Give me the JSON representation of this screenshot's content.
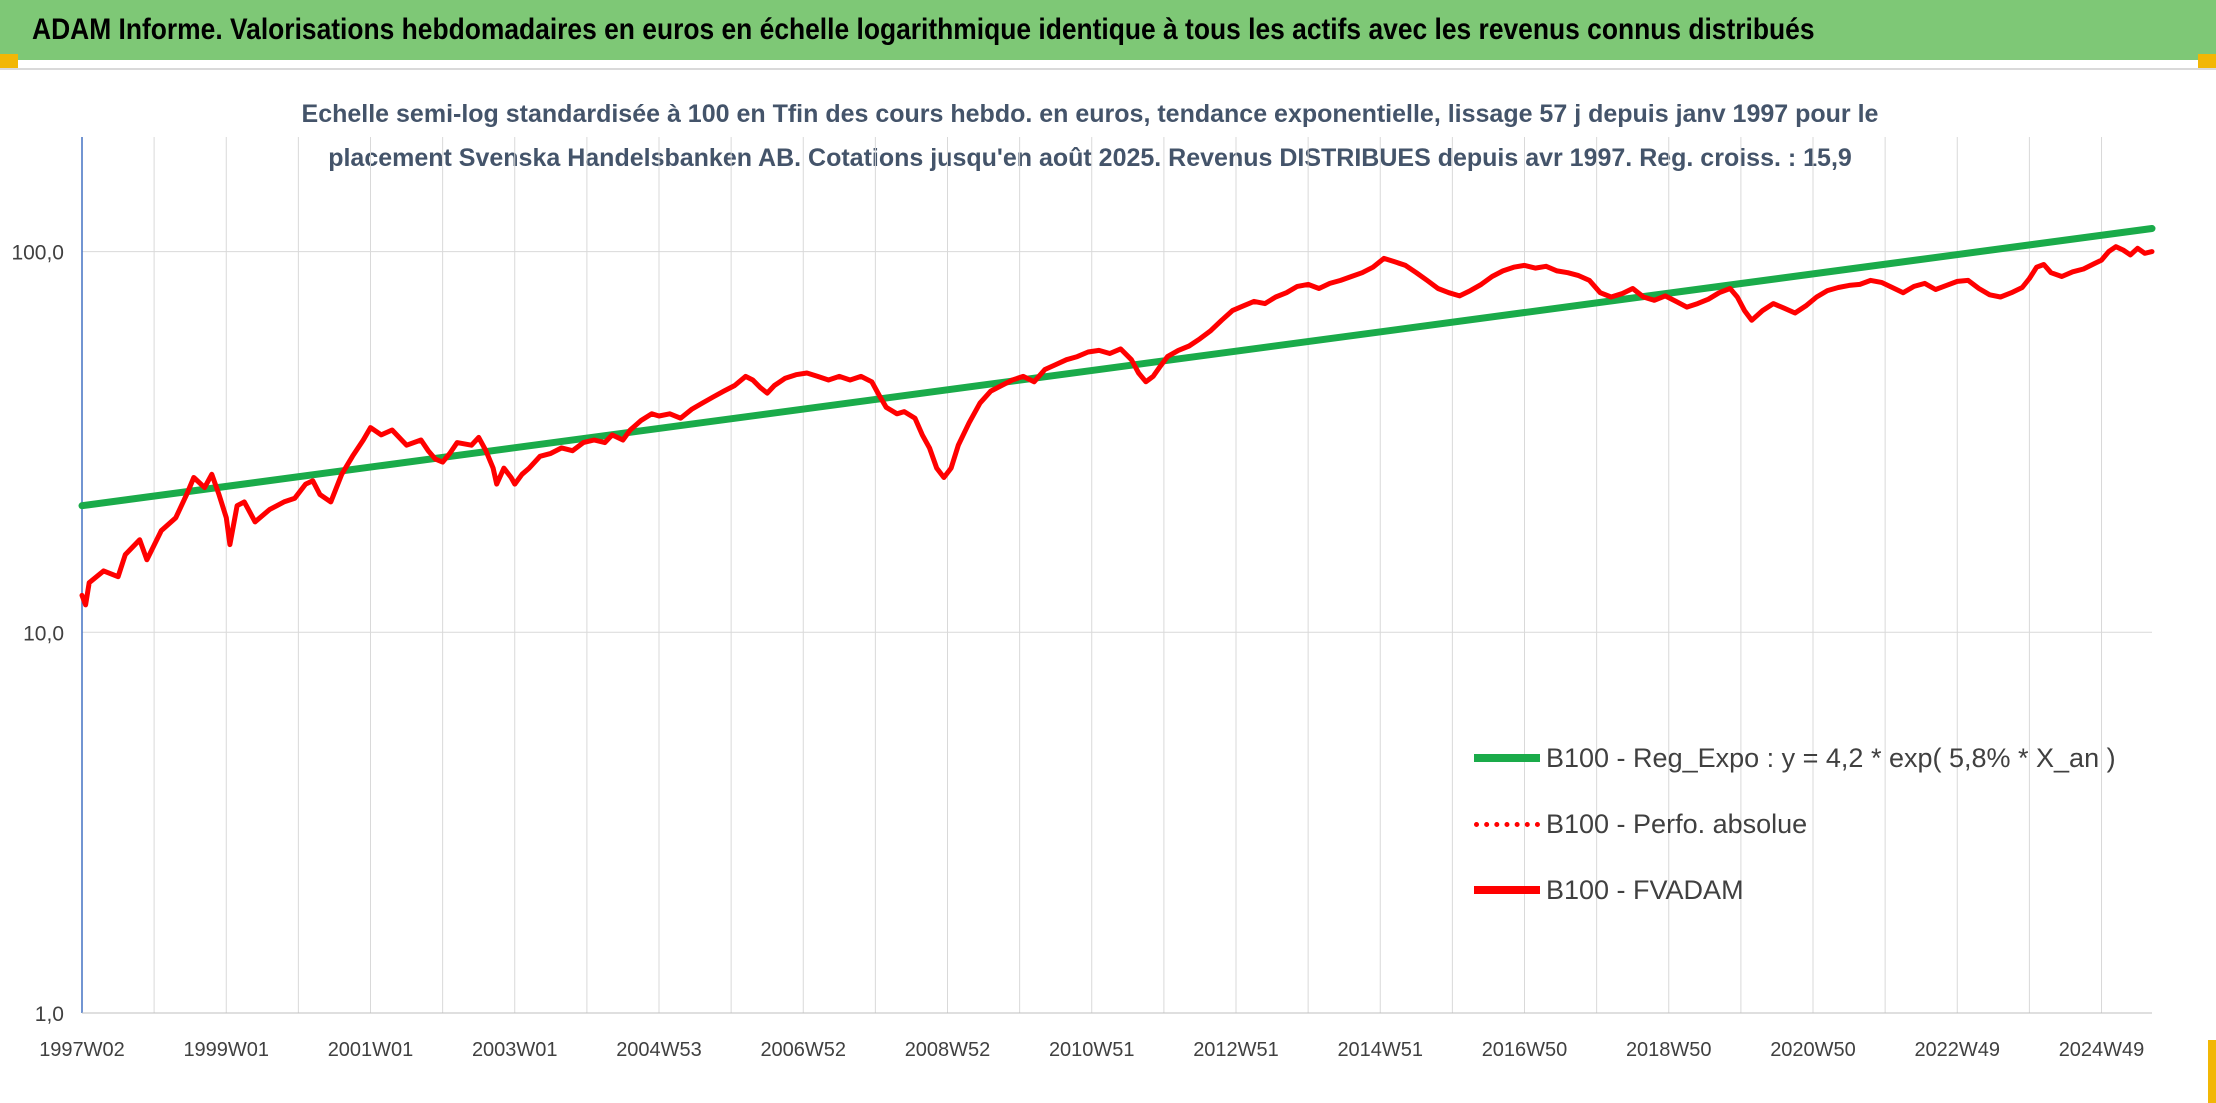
{
  "banner": {
    "title": "ADAM Informe. Valorisations hebdomadaires en euros en échelle logarithmique identique à tous les actifs avec les revenus connus distribués"
  },
  "colors": {
    "banner_bg": "#7ec876",
    "trend": "#1aab4a",
    "performance": "#ff0000",
    "title_text": "#44546a"
  },
  "chart_data": {
    "type": "line",
    "title_lines": [
      "Echelle semi-log standardisée à 100 en Tfin des cours hebdo. en euros, tendance exponentielle, lissage 57 j depuis janv 1997 pour le",
      "placement Svenska Handelsbanken AB. Cotations jusqu'en août 2025. Revenus DISTRIBUES depuis avr 1997. Reg. croiss. : 15,9"
    ],
    "y_scale": "log",
    "ylim": [
      1,
      200
    ],
    "y_ticks": [
      {
        "value": 1,
        "label": "1,0"
      },
      {
        "value": 10,
        "label": "10,0"
      },
      {
        "value": 100,
        "label": "100,0"
      }
    ],
    "x_range": [
      1997.0,
      2025.7
    ],
    "x_ticks": [
      {
        "x": 1997.0,
        "label": "1997W02"
      },
      {
        "x": 1999.0,
        "label": "1999W01"
      },
      {
        "x": 2001.0,
        "label": "2001W01"
      },
      {
        "x": 2003.0,
        "label": "2003W01"
      },
      {
        "x": 2005.0,
        "label": "2004W53"
      },
      {
        "x": 2007.0,
        "label": "2006W52"
      },
      {
        "x": 2009.0,
        "label": "2008W52"
      },
      {
        "x": 2011.0,
        "label": "2010W51"
      },
      {
        "x": 2013.0,
        "label": "2012W51"
      },
      {
        "x": 2015.0,
        "label": "2014W51"
      },
      {
        "x": 2017.0,
        "label": "2016W50"
      },
      {
        "x": 2019.0,
        "label": "2018W50"
      },
      {
        "x": 2021.0,
        "label": "2020W50"
      },
      {
        "x": 2023.0,
        "label": "2022W49"
      },
      {
        "x": 2025.0,
        "label": "2024W49"
      }
    ],
    "grid_x": true,
    "grid_y": true,
    "legend_position": "bottom-right",
    "series": [
      {
        "name": "B100 - Reg_Expo : y = 4,2 * exp( 5,8% *  X_an )",
        "color": "#1aab4a",
        "style": "solid",
        "points": [
          [
            1997.0,
            21.5
          ],
          [
            2025.7,
            115
          ]
        ]
      },
      {
        "name": "B100 - Perfo. absolue",
        "color": "#ff0000",
        "style": "dotted",
        "points": []
      },
      {
        "name": "B100 - FVADAM",
        "color": "#ff0000",
        "style": "solid",
        "points": [
          [
            1997.0,
            12.5
          ],
          [
            1997.05,
            11.8
          ],
          [
            1997.1,
            13.5
          ],
          [
            1997.3,
            14.5
          ],
          [
            1997.5,
            14.0
          ],
          [
            1997.6,
            16.0
          ],
          [
            1997.8,
            17.5
          ],
          [
            1997.9,
            15.5
          ],
          [
            1998.1,
            18.5
          ],
          [
            1998.3,
            20.0
          ],
          [
            1998.45,
            23.0
          ],
          [
            1998.55,
            25.5
          ],
          [
            1998.7,
            24.0
          ],
          [
            1998.8,
            26.0
          ],
          [
            1998.9,
            23.0
          ],
          [
            1999.0,
            20.0
          ],
          [
            1999.05,
            17.0
          ],
          [
            1999.15,
            21.5
          ],
          [
            1999.25,
            22.0
          ],
          [
            1999.4,
            19.5
          ],
          [
            1999.6,
            21.0
          ],
          [
            1999.8,
            22.0
          ],
          [
            1999.95,
            22.5
          ],
          [
            2000.1,
            24.5
          ],
          [
            2000.2,
            25.0
          ],
          [
            2000.3,
            23.0
          ],
          [
            2000.45,
            22.0
          ],
          [
            2000.6,
            26.0
          ],
          [
            2000.75,
            29.0
          ],
          [
            2000.9,
            32.0
          ],
          [
            2001.0,
            34.5
          ],
          [
            2001.15,
            33.0
          ],
          [
            2001.3,
            34.0
          ],
          [
            2001.5,
            31.0
          ],
          [
            2001.7,
            32.0
          ],
          [
            2001.8,
            30.0
          ],
          [
            2001.9,
            28.5
          ],
          [
            2002.0,
            28.0
          ],
          [
            2002.1,
            29.5
          ],
          [
            2002.2,
            31.5
          ],
          [
            2002.4,
            31.0
          ],
          [
            2002.5,
            32.5
          ],
          [
            2002.6,
            30.0
          ],
          [
            2002.7,
            27.0
          ],
          [
            2002.75,
            24.5
          ],
          [
            2002.85,
            27.0
          ],
          [
            2002.95,
            25.5
          ],
          [
            2003.0,
            24.5
          ],
          [
            2003.1,
            26.0
          ],
          [
            2003.2,
            27.0
          ],
          [
            2003.35,
            29.0
          ],
          [
            2003.5,
            29.5
          ],
          [
            2003.65,
            30.5
          ],
          [
            2003.8,
            30.0
          ],
          [
            2003.95,
            31.5
          ],
          [
            2004.1,
            32.0
          ],
          [
            2004.25,
            31.5
          ],
          [
            2004.35,
            33.0
          ],
          [
            2004.5,
            32.0
          ],
          [
            2004.6,
            34.0
          ],
          [
            2004.75,
            36.0
          ],
          [
            2004.9,
            37.5
          ],
          [
            2005.0,
            37.0
          ],
          [
            2005.15,
            37.5
          ],
          [
            2005.3,
            36.5
          ],
          [
            2005.45,
            38.5
          ],
          [
            2005.6,
            40.0
          ],
          [
            2005.75,
            41.5
          ],
          [
            2005.9,
            43.0
          ],
          [
            2006.05,
            44.5
          ],
          [
            2006.2,
            47.0
          ],
          [
            2006.3,
            46.0
          ],
          [
            2006.4,
            44.0
          ],
          [
            2006.5,
            42.5
          ],
          [
            2006.6,
            44.5
          ],
          [
            2006.75,
            46.5
          ],
          [
            2006.9,
            47.5
          ],
          [
            2007.05,
            48.0
          ],
          [
            2007.2,
            47.0
          ],
          [
            2007.35,
            46.0
          ],
          [
            2007.5,
            47.0
          ],
          [
            2007.65,
            46.0
          ],
          [
            2007.8,
            47.0
          ],
          [
            2007.95,
            45.5
          ],
          [
            2008.05,
            42.0
          ],
          [
            2008.15,
            39.0
          ],
          [
            2008.3,
            37.5
          ],
          [
            2008.4,
            38.0
          ],
          [
            2008.55,
            36.5
          ],
          [
            2008.65,
            33.0
          ],
          [
            2008.75,
            30.5
          ],
          [
            2008.85,
            27.0
          ],
          [
            2008.95,
            25.5
          ],
          [
            2009.05,
            27.0
          ],
          [
            2009.15,
            31.0
          ],
          [
            2009.3,
            35.5
          ],
          [
            2009.45,
            40.0
          ],
          [
            2009.6,
            43.0
          ],
          [
            2009.75,
            44.5
          ],
          [
            2009.9,
            46.0
          ],
          [
            2010.05,
            47.0
          ],
          [
            2010.2,
            45.5
          ],
          [
            2010.35,
            49.0
          ],
          [
            2010.5,
            50.5
          ],
          [
            2010.65,
            52.0
          ],
          [
            2010.8,
            53.0
          ],
          [
            2010.95,
            54.5
          ],
          [
            2011.1,
            55.0
          ],
          [
            2011.25,
            54.0
          ],
          [
            2011.4,
            55.5
          ],
          [
            2011.55,
            52.0
          ],
          [
            2011.65,
            48.0
          ],
          [
            2011.75,
            45.5
          ],
          [
            2011.85,
            47.0
          ],
          [
            2011.95,
            50.0
          ],
          [
            2012.05,
            53.0
          ],
          [
            2012.2,
            55.0
          ],
          [
            2012.35,
            56.5
          ],
          [
            2012.5,
            59.0
          ],
          [
            2012.65,
            62.0
          ],
          [
            2012.8,
            66.0
          ],
          [
            2012.95,
            70.0
          ],
          [
            2013.1,
            72.0
          ],
          [
            2013.25,
            74.0
          ],
          [
            2013.4,
            73.0
          ],
          [
            2013.55,
            76.0
          ],
          [
            2013.7,
            78.0
          ],
          [
            2013.85,
            81.0
          ],
          [
            2014.0,
            82.0
          ],
          [
            2014.15,
            80.0
          ],
          [
            2014.3,
            82.5
          ],
          [
            2014.45,
            84.0
          ],
          [
            2014.6,
            86.0
          ],
          [
            2014.75,
            88.0
          ],
          [
            2014.9,
            91.0
          ],
          [
            2015.05,
            96.0
          ],
          [
            2015.2,
            94.0
          ],
          [
            2015.35,
            92.0
          ],
          [
            2015.5,
            88.0
          ],
          [
            2015.65,
            84.0
          ],
          [
            2015.8,
            80.0
          ],
          [
            2015.95,
            78.0
          ],
          [
            2016.1,
            76.5
          ],
          [
            2016.25,
            79.0
          ],
          [
            2016.4,
            82.0
          ],
          [
            2016.55,
            86.0
          ],
          [
            2016.7,
            89.0
          ],
          [
            2016.85,
            91.0
          ],
          [
            2017.0,
            92.0
          ],
          [
            2017.15,
            90.5
          ],
          [
            2017.3,
            91.5
          ],
          [
            2017.45,
            89.0
          ],
          [
            2017.6,
            88.0
          ],
          [
            2017.75,
            86.5
          ],
          [
            2017.9,
            84.0
          ],
          [
            2018.05,
            78.0
          ],
          [
            2018.2,
            76.0
          ],
          [
            2018.35,
            77.5
          ],
          [
            2018.5,
            80.0
          ],
          [
            2018.65,
            76.0
          ],
          [
            2018.8,
            74.5
          ],
          [
            2018.95,
            76.5
          ],
          [
            2019.1,
            74.0
          ],
          [
            2019.25,
            71.5
          ],
          [
            2019.4,
            73.0
          ],
          [
            2019.55,
            75.0
          ],
          [
            2019.7,
            78.0
          ],
          [
            2019.85,
            80.0
          ],
          [
            2019.95,
            76.0
          ],
          [
            2020.05,
            70.0
          ],
          [
            2020.15,
            66.0
          ],
          [
            2020.3,
            70.0
          ],
          [
            2020.45,
            73.0
          ],
          [
            2020.6,
            71.0
          ],
          [
            2020.75,
            69.0
          ],
          [
            2020.9,
            72.0
          ],
          [
            2021.05,
            76.0
          ],
          [
            2021.2,
            79.0
          ],
          [
            2021.35,
            80.5
          ],
          [
            2021.5,
            81.5
          ],
          [
            2021.65,
            82.0
          ],
          [
            2021.8,
            84.0
          ],
          [
            2021.95,
            83.0
          ],
          [
            2022.1,
            80.5
          ],
          [
            2022.25,
            78.0
          ],
          [
            2022.4,
            81.0
          ],
          [
            2022.55,
            82.5
          ],
          [
            2022.7,
            79.5
          ],
          [
            2022.85,
            81.5
          ],
          [
            2023.0,
            83.5
          ],
          [
            2023.15,
            84.0
          ],
          [
            2023.3,
            80.0
          ],
          [
            2023.45,
            77.0
          ],
          [
            2023.6,
            76.0
          ],
          [
            2023.75,
            78.0
          ],
          [
            2023.9,
            80.5
          ],
          [
            2024.0,
            85.0
          ],
          [
            2024.1,
            91.0
          ],
          [
            2024.2,
            92.5
          ],
          [
            2024.3,
            88.0
          ],
          [
            2024.45,
            86.0
          ],
          [
            2024.6,
            88.5
          ],
          [
            2024.75,
            90.0
          ],
          [
            2024.9,
            93.0
          ],
          [
            2025.0,
            95.0
          ],
          [
            2025.1,
            100.0
          ],
          [
            2025.2,
            103.0
          ],
          [
            2025.3,
            101.0
          ],
          [
            2025.4,
            98.0
          ],
          [
            2025.5,
            102.0
          ],
          [
            2025.6,
            99.0
          ],
          [
            2025.7,
            100.0
          ]
        ]
      }
    ]
  }
}
